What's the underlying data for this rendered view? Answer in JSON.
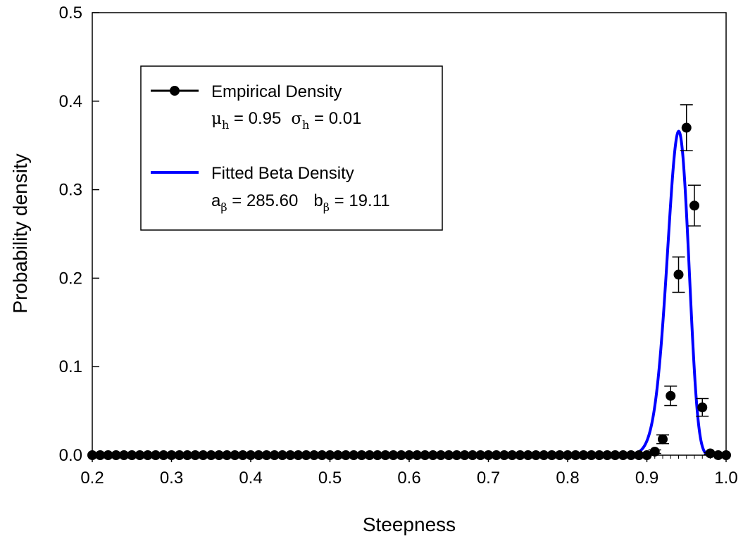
{
  "chart_data": {
    "type": "line",
    "title": "",
    "xlabel": "Steepness",
    "ylabel": "Probability density",
    "xlim": [
      0.2,
      1.0
    ],
    "ylim": [
      0,
      0.5
    ],
    "xticks": [
      "0.2",
      "0.3",
      "0.4",
      "0.5",
      "0.6",
      "0.7",
      "0.8",
      "0.9",
      "1.0"
    ],
    "yticks": [
      "0.0",
      "0.1",
      "0.2",
      "0.3",
      "0.4",
      "0.5"
    ],
    "grid": false,
    "legend_position": "top-left",
    "series": [
      {
        "name": "Empirical Density",
        "kind": "points-with-errorbars",
        "color": "#000000",
        "x_start": 0.2,
        "x_step": 0.01,
        "nonzero_points": [
          {
            "x": 0.91,
            "y": 0.004,
            "err": 0.002
          },
          {
            "x": 0.92,
            "y": 0.018,
            "err": 0.005
          },
          {
            "x": 0.93,
            "y": 0.067,
            "err": 0.011
          },
          {
            "x": 0.94,
            "y": 0.204,
            "err": 0.02
          },
          {
            "x": 0.95,
            "y": 0.37,
            "err": 0.026
          },
          {
            "x": 0.96,
            "y": 0.282,
            "err": 0.023
          },
          {
            "x": 0.97,
            "y": 0.054,
            "err": 0.01
          },
          {
            "x": 0.98,
            "y": 0.002,
            "err": 0.001
          }
        ]
      },
      {
        "name": "Fitted Beta Density",
        "kind": "beta-curve",
        "color": "#0000ff",
        "a": 285.6,
        "b": 19.11
      }
    ],
    "legend": {
      "entry1_label": "Empirical Density",
      "entry1_params": {
        "mu_symbol": "μ",
        "mu_sub": "h",
        "mu_value": " = 0.95",
        "sigma_symbol": "σ",
        "sigma_sub": "h",
        "sigma_value": " = 0.01"
      },
      "entry2_label": "Fitted Beta Density",
      "entry2_params": {
        "a_letter": "a",
        "a_sub": "β",
        "a_value": " = 285.60",
        "b_letter": "b",
        "b_sub": "β",
        "b_value": " = 19.11"
      }
    }
  }
}
